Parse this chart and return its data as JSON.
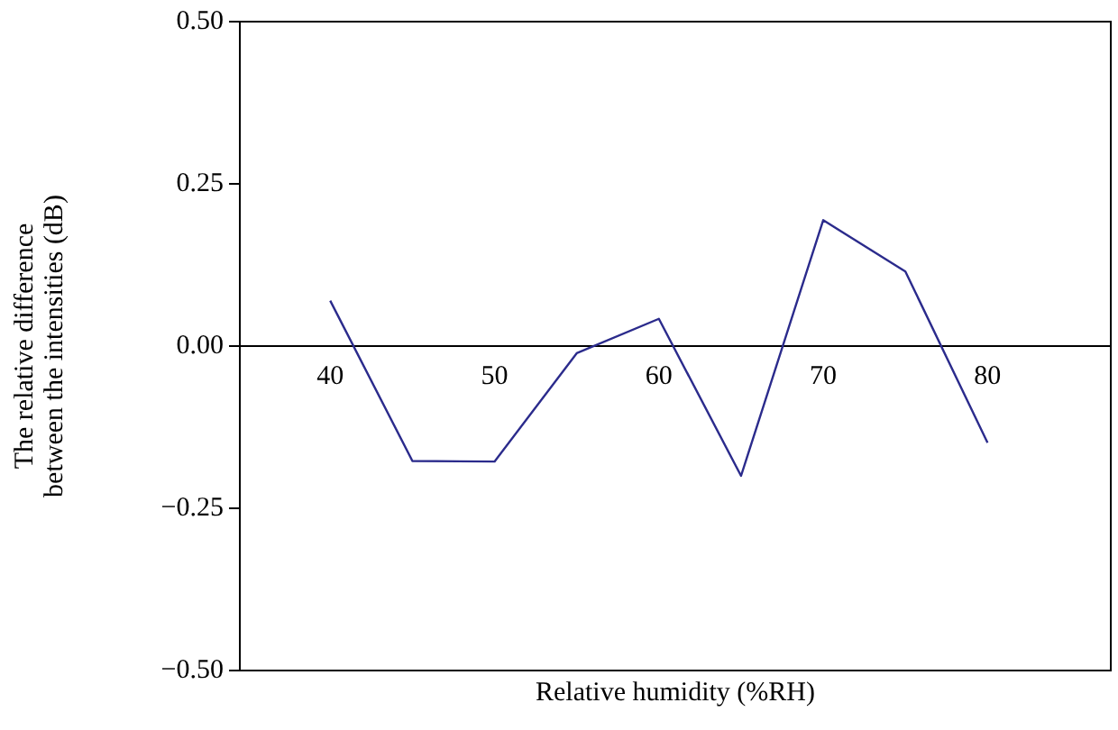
{
  "chart_data": {
    "type": "line",
    "xlabel": "Relative humidity (%RH)",
    "ylabel": "The relative difference between the intensities (dB)",
    "x": [
      40,
      45,
      50,
      55,
      60,
      65,
      70,
      75,
      80
    ],
    "series": [
      {
        "color": "#2b2b8c",
        "values": [
          0.07,
          -0.177,
          -0.178,
          -0.011,
          0.042,
          -0.2,
          0.194,
          0.115,
          -0.149
        ]
      }
    ],
    "xlim": [
      34.5,
      87.5
    ],
    "xticks": [
      40,
      50,
      60,
      70,
      80
    ],
    "ylim": [
      -0.5,
      0.5
    ],
    "yticks": [
      {
        "value": -0.5,
        "label": "−0.50"
      },
      {
        "value": -0.25,
        "label": "−0.25"
      },
      {
        "value": 0,
        "label": "0.00"
      },
      {
        "value": 0.25,
        "label": "0.25"
      },
      {
        "value": 0.5,
        "label": "0.50"
      }
    ],
    "grid": false,
    "legend": false,
    "marker": "none",
    "line_style": "solid"
  }
}
